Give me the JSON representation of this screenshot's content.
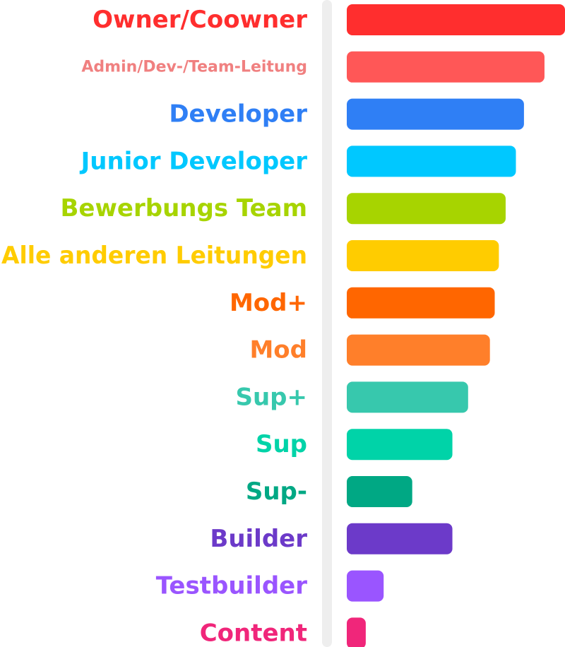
{
  "chart_data": {
    "type": "bar",
    "orientation": "horizontal",
    "title": "",
    "xlabel": "",
    "ylabel": "",
    "grid": false,
    "legend": "none",
    "xlim": [
      0,
      100
    ],
    "categories": [
      "Owner/Coowner",
      "Admin/Dev-/Team-Leitung",
      "Developer",
      "Junior Developer",
      "Bewerbungs Team",
      "Alle anderen Leitungen",
      "Mod+",
      "Mod",
      "Sup+",
      "Sup",
      "Sup-",
      "Builder",
      "Testbuilder",
      "Content"
    ],
    "values": [
      100,
      90.6,
      81.2,
      77.5,
      72.8,
      69.7,
      67.8,
      65.6,
      55.6,
      48.4,
      30,
      48.4,
      16.9,
      8.7
    ],
    "colors": [
      "#ff2e2e",
      "#ff5757",
      "#2f7ff5",
      "#00c8ff",
      "#a7d400",
      "#ffcc00",
      "#ff6600",
      "#ff7f2a",
      "#37c8ad",
      "#00d3a8",
      "#00a884",
      "#6c3ac9",
      "#9a55ff",
      "#f0267a"
    ],
    "label_colors": [
      "#ff2e2e",
      "#f08080",
      "#2f7ff5",
      "#00c8ff",
      "#a7d400",
      "#ffcc00",
      "#ff6600",
      "#ff7f2a",
      "#37c8ad",
      "#00d3a8",
      "#00a884",
      "#6c3ac9",
      "#9a55ff",
      "#f0267a"
    ],
    "divider_color": "#eeeeee"
  }
}
